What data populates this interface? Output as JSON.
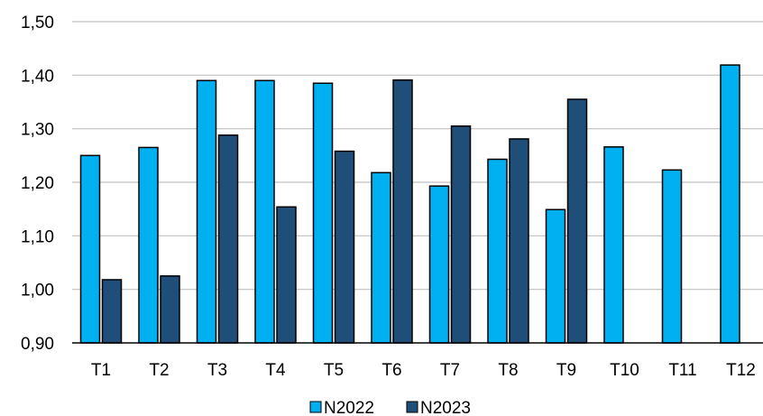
{
  "chart_data": {
    "type": "bar",
    "categories": [
      "T1",
      "T2",
      "T3",
      "T4",
      "T5",
      "T6",
      "T7",
      "T8",
      "T9",
      "T10",
      "T11",
      "T12"
    ],
    "series": [
      {
        "name": "N2022",
        "color": "#00B0F0",
        "values": [
          1.25,
          1.265,
          1.39,
          1.39,
          1.385,
          1.218,
          1.193,
          1.243,
          1.149,
          1.266,
          1.223,
          1.419
        ]
      },
      {
        "name": "N2023",
        "color": "#1F4E79",
        "values": [
          1.018,
          1.025,
          1.288,
          1.154,
          1.258,
          1.391,
          1.305,
          1.281,
          1.355,
          null,
          null,
          null
        ]
      }
    ],
    "ylim": [
      0.9,
      1.5
    ],
    "yticks": [
      "0,90",
      "1,00",
      "1,10",
      "1,20",
      "1,30",
      "1,40",
      "1,50"
    ],
    "grid": true,
    "legend": "bottom"
  }
}
